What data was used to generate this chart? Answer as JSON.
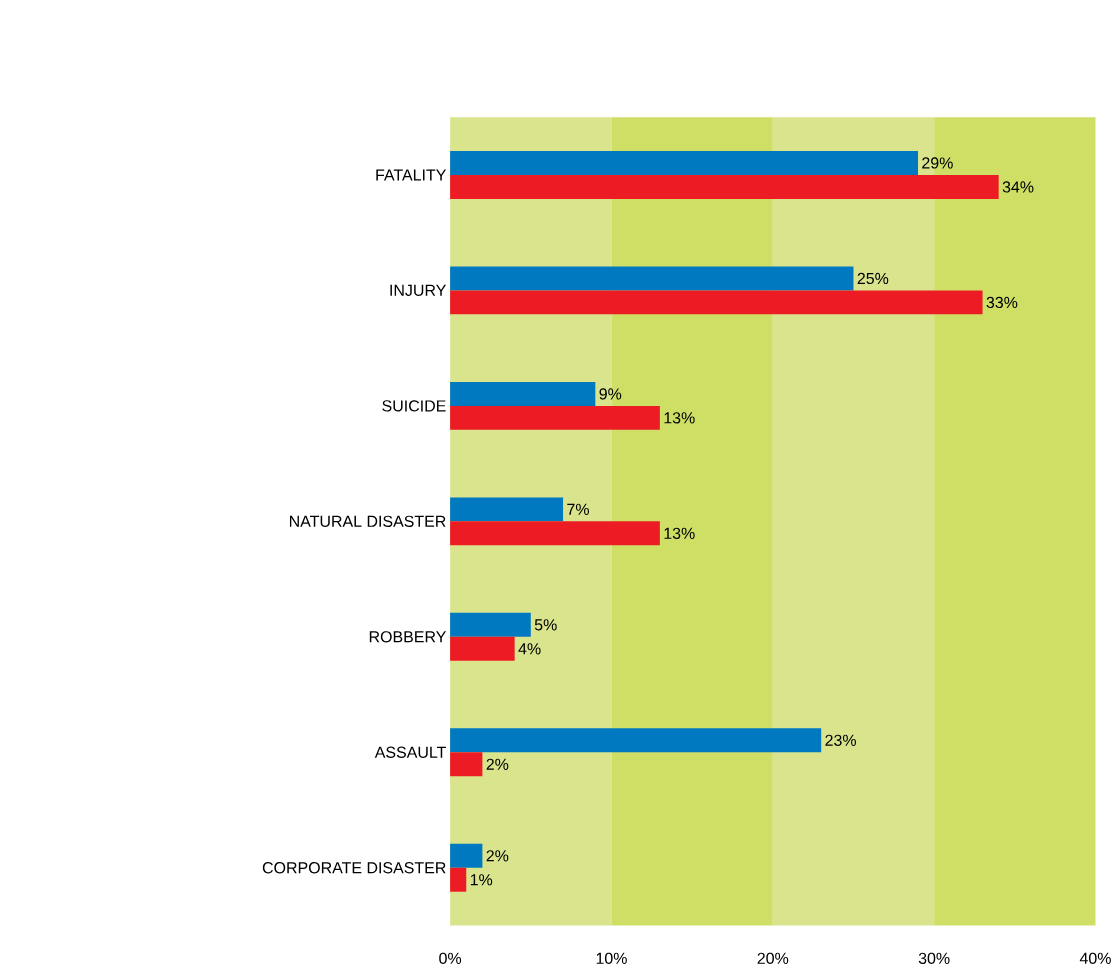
{
  "chart_data": {
    "type": "bar",
    "orientation": "horizontal",
    "categories": [
      "FATALITY",
      "INJURY",
      "SUICIDE",
      "NATURAL DISASTER",
      "ROBBERY",
      "ASSAULT",
      "CORPORATE DISASTER"
    ],
    "series": [
      {
        "color": "#0079c1",
        "values": [
          29,
          25,
          9,
          7,
          5,
          23,
          2
        ],
        "value_labels": [
          "29%",
          "25%",
          "9%",
          "7%",
          "5%",
          "23%",
          "2%"
        ]
      },
      {
        "color": "#ed1c24",
        "values": [
          34,
          33,
          13,
          13,
          4,
          2,
          1
        ],
        "value_labels": [
          "34%",
          "33%",
          "13%",
          "13%",
          "4%",
          "2%",
          "1%"
        ]
      }
    ],
    "xlim": [
      0,
      40
    ],
    "xticks": [
      {
        "value": 0,
        "label": "0%"
      },
      {
        "value": 10,
        "label": "10%"
      },
      {
        "value": 20,
        "label": "20%"
      },
      {
        "value": 30,
        "label": "30%"
      },
      {
        "value": 40,
        "label": "40%"
      }
    ],
    "bands": [
      {
        "axis": "x",
        "from": 0,
        "to": 10,
        "color": "#d9e48d"
      },
      {
        "axis": "x",
        "from": 10,
        "to": 20,
        "color": "#cfdf66"
      },
      {
        "axis": "x",
        "from": 20,
        "to": 30,
        "color": "#d9e48d"
      },
      {
        "axis": "x",
        "from": 30,
        "to": 40,
        "color": "#cfdf66"
      }
    ],
    "grid": false
  }
}
